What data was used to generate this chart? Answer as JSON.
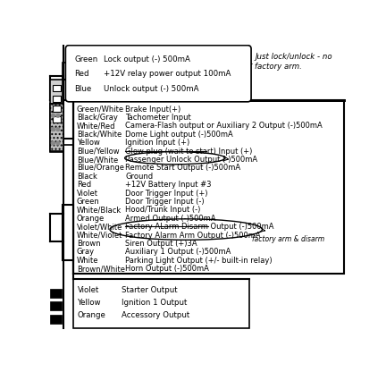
{
  "bg_color": "#ffffff",
  "bubble_lines": [
    {
      "color": "Green",
      "desc": "Lock output (-) 500mA"
    },
    {
      "color": "Red",
      "desc": "+12V relay power output 100mA"
    },
    {
      "color": "Blue",
      "desc": "Unlock output (-) 500mA"
    }
  ],
  "bubble_note": "Just lock/unlock - no\nfactory arm.",
  "main_rows": [
    {
      "wire": "Green/White",
      "desc": "Brake Input(+)"
    },
    {
      "wire": "Black/Gray",
      "desc": "Tachometer Input"
    },
    {
      "wire": "White/Red",
      "desc": "Camera-Flash output or Auxiliary 2 Output (-)500mA"
    },
    {
      "wire": "Black/White",
      "desc": "Dome Light output (-)500mA"
    },
    {
      "wire": "Yellow",
      "desc": "Ignition Input (+)"
    },
    {
      "wire": "Blue/Yellow",
      "desc": "Glow plug (wait to start) Input (+)",
      "strikethrough": true
    },
    {
      "wire": "Blue/White",
      "desc": "Passenger Unlock Output (-)500mA",
      "circled": true
    },
    {
      "wire": "Blue/Orange",
      "desc": "Remote Start Output (-)500mA"
    },
    {
      "wire": "Black",
      "desc": "Ground"
    },
    {
      "wire": "Red",
      "desc": "+12V Battery Input #3"
    },
    {
      "wire": "Violet",
      "desc": "Door Trigger Input (+)"
    },
    {
      "wire": "Green",
      "desc": "Door Trigger Input (-)"
    },
    {
      "wire": "White/Black",
      "desc": "Hood/Trunk Input (-)"
    },
    {
      "wire": "Orange",
      "desc": "Armed Output (-)500mA"
    },
    {
      "wire": "Violet/White",
      "desc": "Factory ALarm Disarm Output (-)500mA",
      "circled_pair": true,
      "strikethrough": true
    },
    {
      "wire": "White/Violet",
      "desc": "Factory Alarm Arm Output (-)500mA",
      "circled_pair": true
    },
    {
      "wire": "Brown",
      "desc": "Siren Output (+)3A"
    },
    {
      "wire": "Gray",
      "desc": "Auxiliary 1 Output (-)500mA"
    },
    {
      "wire": "White",
      "desc": "Parking Light Output (+/- built-in relay)"
    },
    {
      "wire": "Brown/White",
      "desc": "Horn Output (-)500mA"
    }
  ],
  "bottom_rows": [
    {
      "wire": "Violet",
      "desc": "Starter Output"
    },
    {
      "wire": "Yellow",
      "desc": "Ignition 1 Output"
    },
    {
      "wire": "Orange",
      "desc": "Accessory Output"
    }
  ],
  "factory_arm_note": "factory arm & disarm"
}
